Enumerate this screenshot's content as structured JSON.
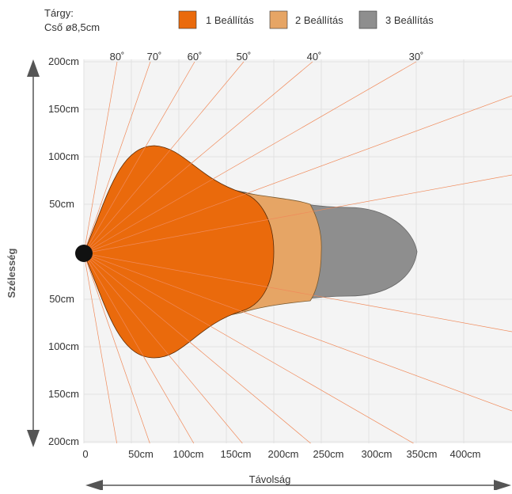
{
  "target": {
    "line1": "Tárgy:",
    "line2": "Cső ø8,5cm"
  },
  "legend": [
    {
      "label": "1 Beállítás",
      "color": "#EA6A0C"
    },
    {
      "label": "2 Beállítás",
      "color": "#E6A565"
    },
    {
      "label": "3 Beállítás",
      "color": "#8E8E8E"
    }
  ],
  "angles": [
    "80˚",
    "70˚",
    "60˚",
    "50˚",
    "40˚",
    "30˚"
  ],
  "width_labels_top": [
    "200cm",
    "150cm",
    "100cm",
    "50cm"
  ],
  "width_labels_bottom": [
    "50cm",
    "100cm",
    "150cm",
    "200cm"
  ],
  "distance_labels": [
    "0",
    "50cm",
    "100cm",
    "150cm",
    "200cm",
    "250cm",
    "300cm",
    "350cm",
    "400cm"
  ],
  "axis": {
    "x_label": "Távolság",
    "y_label": "Szélesség"
  },
  "colors": {
    "ray": "#F08A5A",
    "grid": "#E2E2E2",
    "arrow": "#555555",
    "source": "#111111"
  }
}
